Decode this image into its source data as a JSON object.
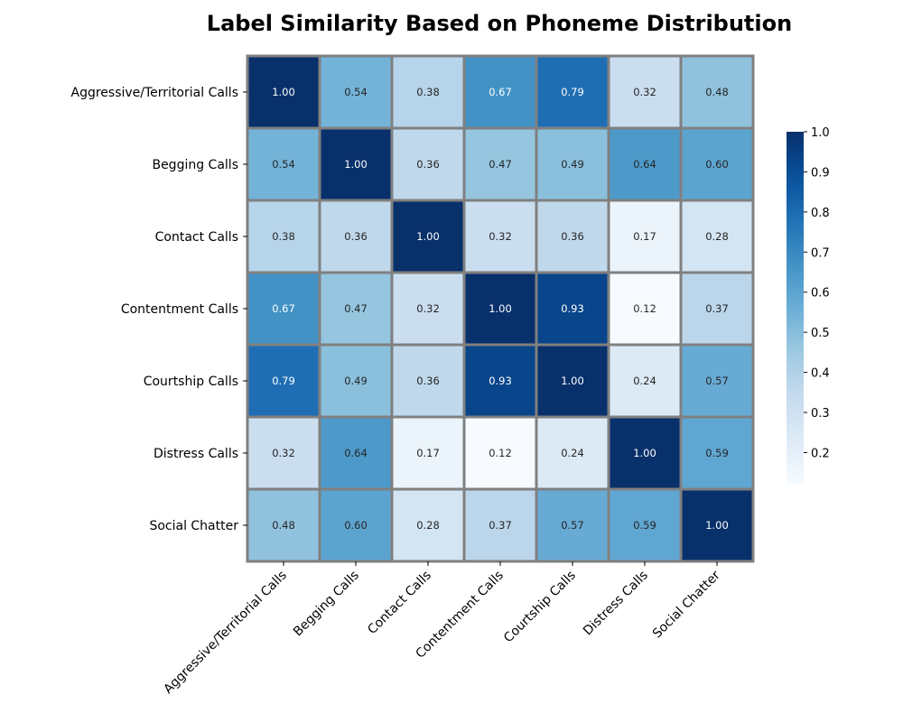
{
  "chart_data": {
    "type": "heatmap",
    "title": "Label Similarity Based on Phoneme Distribution",
    "xlabel": "",
    "ylabel": "",
    "x_categories": [
      "Aggressive/Territorial Calls",
      "Begging Calls",
      "Contact Calls",
      "Contentment Calls",
      "Courtship Calls",
      "Distress Calls",
      "Social Chatter"
    ],
    "y_categories": [
      "Aggressive/Territorial Calls",
      "Begging Calls",
      "Contact Calls",
      "Contentment Calls",
      "Courtship Calls",
      "Distress Calls",
      "Social Chatter"
    ],
    "values": [
      [
        1.0,
        0.54,
        0.38,
        0.67,
        0.79,
        0.32,
        0.48
      ],
      [
        0.54,
        1.0,
        0.36,
        0.47,
        0.49,
        0.64,
        0.6
      ],
      [
        0.38,
        0.36,
        1.0,
        0.32,
        0.36,
        0.17,
        0.28
      ],
      [
        0.67,
        0.47,
        0.32,
        1.0,
        0.93,
        0.12,
        0.37
      ],
      [
        0.79,
        0.49,
        0.36,
        0.93,
        1.0,
        0.24,
        0.57
      ],
      [
        0.32,
        0.64,
        0.17,
        0.12,
        0.24,
        1.0,
        0.59
      ],
      [
        0.48,
        0.6,
        0.28,
        0.37,
        0.57,
        0.59,
        1.0
      ]
    ],
    "annotation_format": "2 decimals",
    "colormap": "Blues",
    "color_range": [
      0.12,
      1.0
    ],
    "colorbar_ticks": [
      "0.2",
      "0.3",
      "0.4",
      "0.5",
      "0.6",
      "0.7",
      "0.8",
      "0.9",
      "1.0"
    ],
    "cell_border_color": "#808080",
    "grid": false,
    "legend": "colorbar right"
  }
}
